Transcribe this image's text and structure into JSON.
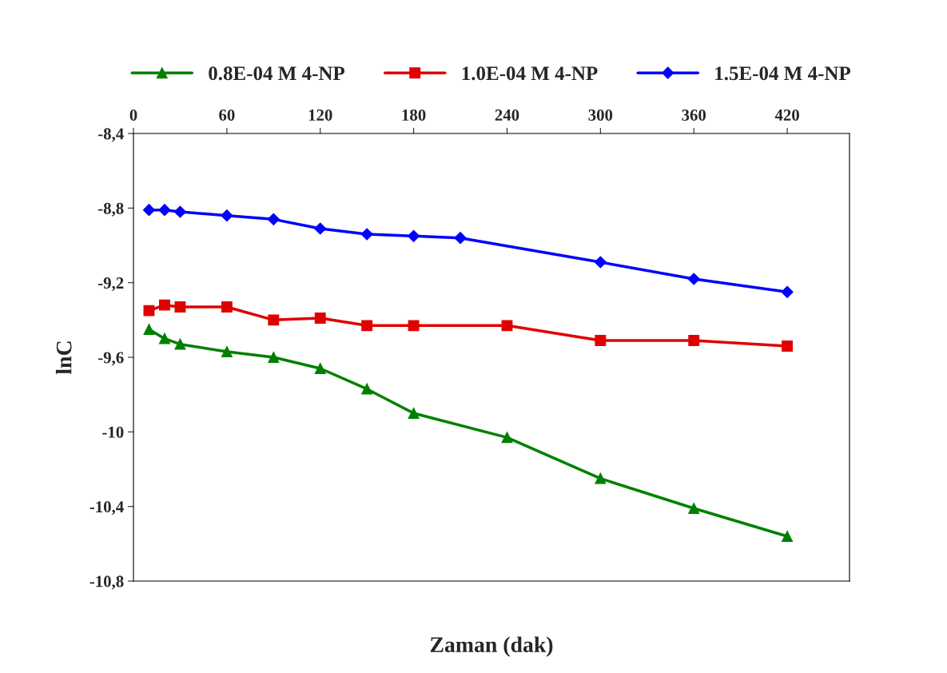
{
  "chart_data": {
    "type": "line",
    "xlabel": "Zaman (dak)",
    "ylabel": "lnC",
    "xlim": [
      0,
      460
    ],
    "xticks": [
      0,
      60,
      120,
      180,
      240,
      300,
      360,
      420
    ],
    "ylim": [
      -10.8,
      -8.4
    ],
    "yticks": [
      {
        "value": -8.4,
        "label": "-8,4"
      },
      {
        "value": -8.8,
        "label": "-8,8"
      },
      {
        "value": -9.2,
        "label": "-9,2"
      },
      {
        "value": -9.6,
        "label": "-9,6"
      },
      {
        "value": -10,
        "label": "-10"
      },
      {
        "value": -10.4,
        "label": "-10,4"
      },
      {
        "value": -10.8,
        "label": "-10,8"
      }
    ],
    "grid": false,
    "legend": "top",
    "line_style": "solid",
    "series": [
      {
        "name": "0.8E-04 M 4-NP",
        "color": "#008000",
        "marker": "triangle",
        "x": [
          10,
          20,
          30,
          60,
          90,
          120,
          150,
          180,
          240,
          300,
          360,
          420
        ],
        "values": [
          -9.45,
          -9.5,
          -9.53,
          -9.57,
          -9.6,
          -9.66,
          -9.77,
          -9.9,
          -10.03,
          -10.25,
          -10.41,
          -10.56
        ]
      },
      {
        "name": "1.0E-04 M 4-NP",
        "color": "#e00000",
        "marker": "square",
        "x": [
          10,
          20,
          30,
          60,
          90,
          120,
          150,
          180,
          240,
          300,
          360,
          420
        ],
        "values": [
          -9.35,
          -9.32,
          -9.33,
          -9.33,
          -9.4,
          -9.39,
          -9.43,
          -9.43,
          -9.43,
          -9.51,
          -9.51,
          -9.54
        ]
      },
      {
        "name": "1.5E-04 M 4-NP",
        "color": "#0000ff",
        "marker": "diamond",
        "x": [
          10,
          20,
          30,
          60,
          90,
          120,
          150,
          180,
          210,
          300,
          360,
          420
        ],
        "values": [
          -8.81,
          -8.81,
          -8.82,
          -8.84,
          -8.86,
          -8.91,
          -8.94,
          -8.95,
          -8.96,
          -9.09,
          -9.18,
          -9.25
        ]
      }
    ]
  }
}
